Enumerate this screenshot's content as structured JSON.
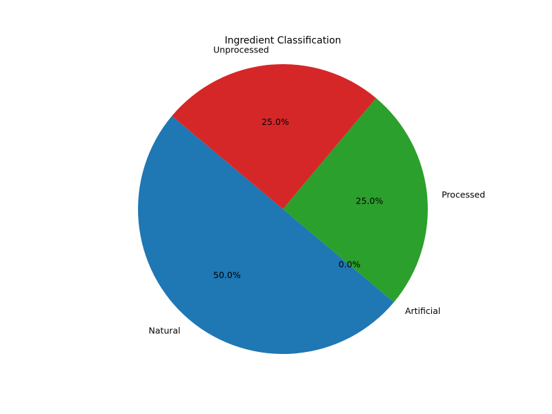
{
  "chart_data": {
    "type": "pie",
    "title": "Ingredient Classification",
    "start_angle_deg": 140,
    "direction": "counterclockwise",
    "slices": [
      {
        "label": "Natural",
        "value": 50.0,
        "pct_text": "50.0%",
        "color": "#1f77b4"
      },
      {
        "label": "Artificial",
        "value": 0.0,
        "pct_text": "0.0%",
        "color": "#ff7f0e"
      },
      {
        "label": "Processed",
        "value": 25.0,
        "pct_text": "25.0%",
        "color": "#2ca02c"
      },
      {
        "label": "Unprocessed",
        "value": 25.0,
        "pct_text": "25.0%",
        "color": "#d62728"
      }
    ]
  }
}
